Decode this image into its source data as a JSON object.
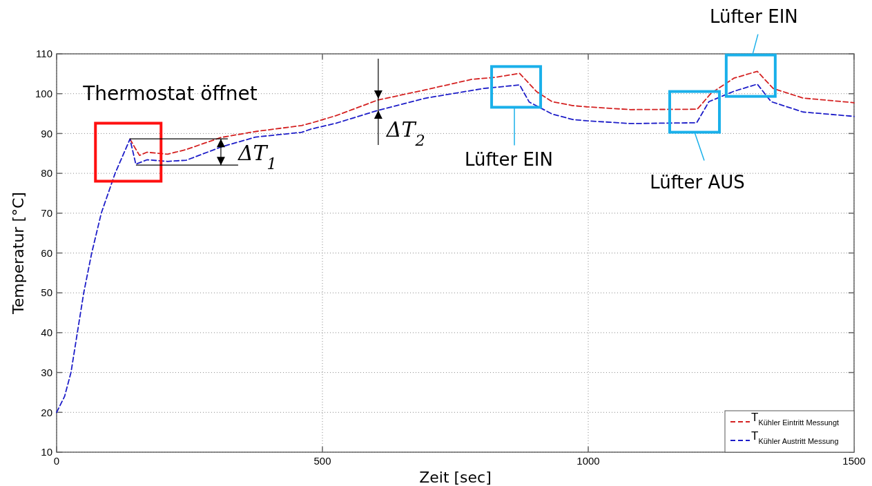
{
  "chart_data": {
    "type": "line",
    "xlabel": "Zeit [sec]",
    "ylabel": "Temperatur [°C]",
    "xlim": [
      0,
      1500
    ],
    "xticks": [
      0,
      500,
      1000,
      1500
    ],
    "ylim": [
      10,
      110
    ],
    "yticks": [
      10,
      20,
      30,
      40,
      50,
      60,
      70,
      80,
      90,
      100,
      110
    ],
    "grid": true,
    "legend": "bottom right",
    "line_style": "dashed",
    "series": [
      {
        "name": "T$_{Kühler Eintritt Messungt}$",
        "color": "#d42020",
        "x": [
          138,
          147,
          156,
          170,
          209,
          244,
          309,
          374,
          461,
          478,
          526,
          604,
          695,
          781,
          825,
          871,
          903,
          932,
          971,
          997,
          1079,
          1205,
          1231,
          1274,
          1318,
          1348,
          1404,
          1495,
          1500
        ],
        "values": [
          88.6,
          86.5,
          84.5,
          85.3,
          84.8,
          86,
          89,
          90.5,
          92,
          92.6,
          94.5,
          98.4,
          101,
          103.6,
          104.1,
          105.1,
          100.5,
          98,
          97,
          96.7,
          96,
          96.1,
          100.1,
          103.9,
          105.6,
          101.3,
          98.9,
          97.8,
          97.7
        ]
      },
      {
        "name": "T$_{Kühler Austritt Messung}$",
        "color": "#1c1cc8",
        "x": [
          0,
          15,
          27,
          39,
          51,
          66,
          84,
          110,
          138,
          149,
          170,
          209,
          244,
          309,
          374,
          461,
          478,
          526,
          604,
          695,
          803,
          871,
          889,
          932,
          971,
          997,
          1079,
          1204,
          1227,
          1274,
          1318,
          1344,
          1404,
          1491,
          1500
        ],
        "values": [
          20,
          24,
          30,
          40,
          50,
          60,
          70,
          80,
          88.6,
          82.3,
          83.4,
          83,
          83.3,
          86.6,
          89.1,
          90.3,
          91.1,
          92.6,
          95.8,
          98.9,
          101.3,
          102.2,
          97.9,
          94.9,
          93.5,
          93.2,
          92.5,
          92.7,
          98,
          100.6,
          102.4,
          98,
          95.4,
          94.4,
          94.3
        ]
      }
    ],
    "annotations": [
      {
        "text": "Thermostat öffnet",
        "x": 138,
        "y": 88.6
      },
      {
        "text": "ΔT$_{1}$",
        "x": 309,
        "y": 89
      },
      "ΔT$_{2}$",
      "Lüfter EIN",
      "Lüfter AUS",
      "Lüfter EIN"
    ]
  }
}
